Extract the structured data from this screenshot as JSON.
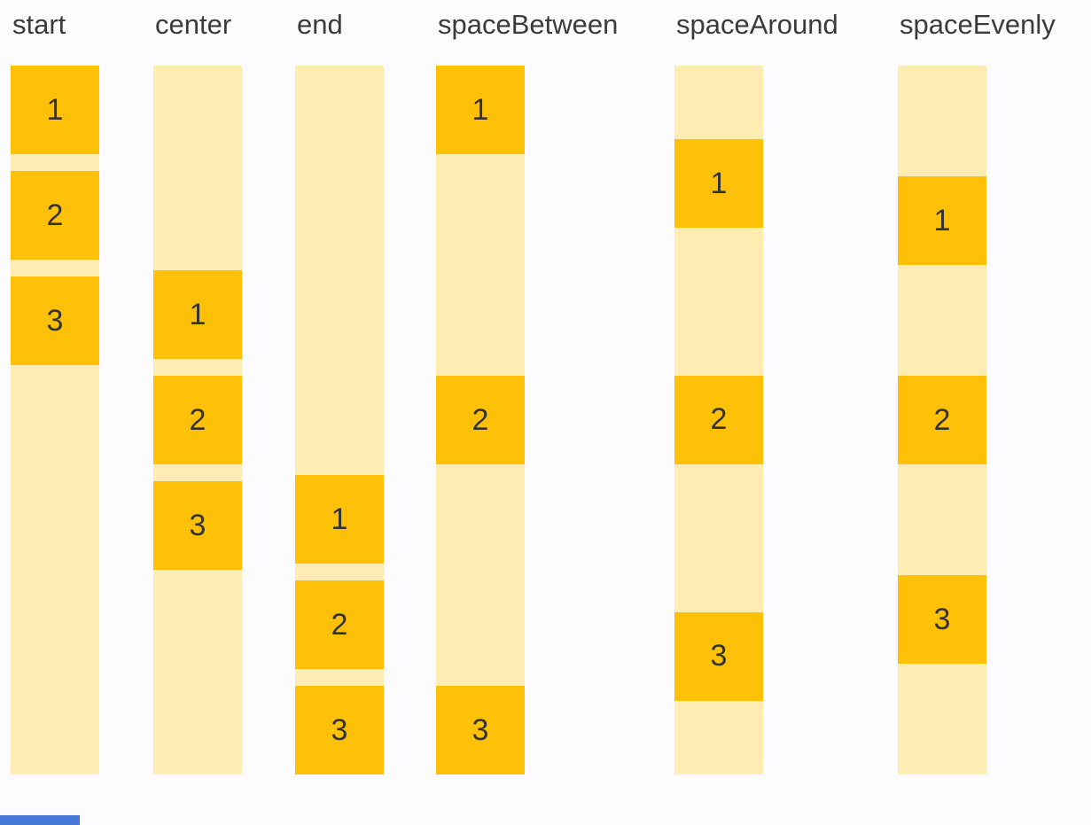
{
  "figure": {
    "columns": [
      {
        "label": "start",
        "items": [
          "1",
          "2",
          "3"
        ]
      },
      {
        "label": "center",
        "items": [
          "1",
          "2",
          "3"
        ]
      },
      {
        "label": "end",
        "items": [
          "1",
          "2",
          "3"
        ]
      },
      {
        "label": "spaceBetween",
        "items": [
          "1",
          "2",
          "3"
        ]
      },
      {
        "label": "spaceAround",
        "items": [
          "1",
          "2",
          "3"
        ]
      },
      {
        "label": "spaceEvenly",
        "items": [
          "1",
          "2",
          "3"
        ]
      }
    ]
  },
  "colors": {
    "background": "#FCFCFE",
    "column_background": "#FFECB3",
    "item_background": "#FFC107",
    "label_text": "#3B3B3B",
    "item_text": "#333333",
    "bottom_bar": "#4577D6"
  }
}
